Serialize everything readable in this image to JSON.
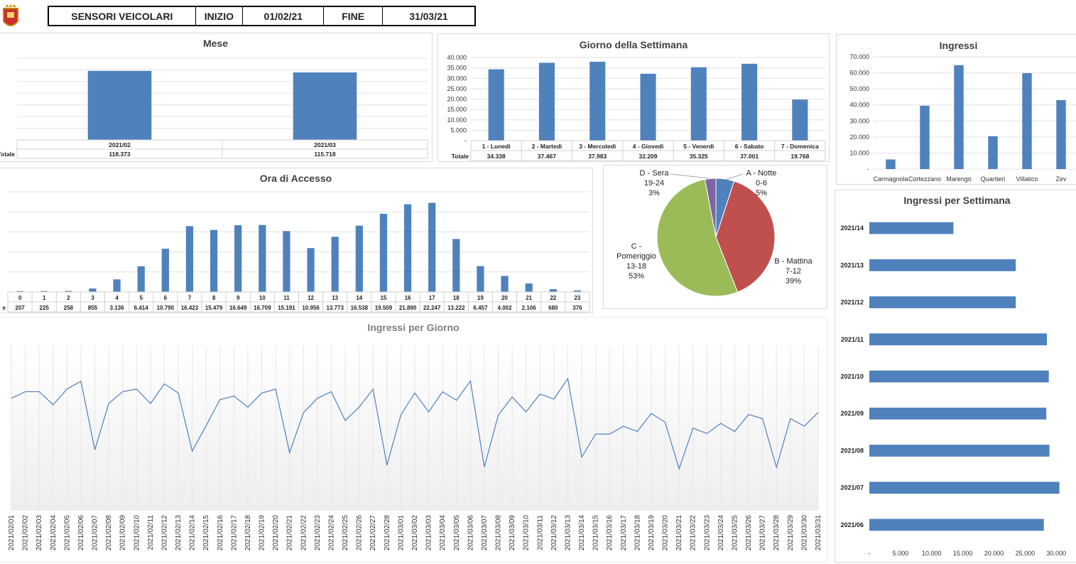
{
  "header": {
    "title": "SENSORI VEICOLARI",
    "start_label": "INIZIO",
    "start_value": "01/02/21",
    "end_label": "FINE",
    "end_value": "31/03/21"
  },
  "colors": {
    "bar": "#4f81bd",
    "grid": "#e3e3e3",
    "text": "#404040",
    "pie_a": "#4f81bd",
    "pie_b": "#c0504d",
    "pie_c": "#9bbb59",
    "pie_d": "#8064a2"
  },
  "chart_data": [
    {
      "id": "mese",
      "type": "bar",
      "title": "Mese",
      "categories": [
        "2021/02",
        "2021/03"
      ],
      "values": [
        118373,
        115718
      ],
      "value_labels": [
        "118.373",
        "115.718"
      ],
      "table_row_label": "Totale",
      "ylim": [
        0,
        140000
      ]
    },
    {
      "id": "giorno",
      "type": "bar",
      "title": "Giorno della Settimana",
      "categories": [
        "1 - Lunedì",
        "2 - Martedì",
        "3 - Mercoledì",
        "4 - Giovedì",
        "5 - Venerdì",
        "6 - Sabato",
        "7 - Domenica"
      ],
      "values": [
        34338,
        37467,
        37983,
        32209,
        35325,
        37001,
        19768
      ],
      "value_labels": [
        "34.338",
        "37.467",
        "37.983",
        "32.209",
        "35.325",
        "37.001",
        "19.768"
      ],
      "table_row_label": "Totale",
      "ylim": [
        0,
        40000
      ],
      "yticks": [
        "-",
        "5.000",
        "10.000",
        "15.000",
        "20.000",
        "25.000",
        "30.000",
        "35.000",
        "40.000"
      ]
    },
    {
      "id": "ingressi",
      "type": "bar",
      "title": "Ingressi",
      "categories": [
        "Carmagnola",
        "Cortezzano",
        "Marengo",
        "Quartieri",
        "Villatico",
        "Zev"
      ],
      "values": [
        6000,
        39500,
        64800,
        20500,
        59800,
        43000
      ],
      "ylim": [
        0,
        70000
      ],
      "yticks": [
        "-",
        "10.000",
        "20.000",
        "30.000",
        "40.000",
        "50.000",
        "60.000",
        "70.000"
      ]
    },
    {
      "id": "ora",
      "type": "bar",
      "title": "Ora di Accesso",
      "categories": [
        "0",
        "1",
        "2",
        "3",
        "4",
        "5",
        "6",
        "7",
        "8",
        "9",
        "10",
        "11",
        "12",
        "13",
        "14",
        "15",
        "16",
        "17",
        "18",
        "19",
        "20",
        "21",
        "22",
        "23"
      ],
      "values": [
        207,
        225,
        258,
        855,
        3136,
        6414,
        10790,
        16423,
        15479,
        16649,
        16709,
        15191,
        10956,
        13773,
        16538,
        19509,
        21890,
        22247,
        13222,
        6457,
        4002,
        2106,
        680,
        376
      ],
      "value_labels": [
        "207",
        "225",
        "258",
        "855",
        "3.136",
        "6.414",
        "10.790",
        "16.423",
        "15.479",
        "16.649",
        "16.709",
        "15.191",
        "10.956",
        "13.773",
        "16.538",
        "19.509",
        "21.890",
        "22.247",
        "13.222",
        "6.457",
        "4.002",
        "2.106",
        "680",
        "376"
      ],
      "table_row_label": "e",
      "ylim": [
        0,
        25000
      ]
    },
    {
      "id": "fascia",
      "type": "pie",
      "slices": [
        {
          "name": "A - Notte",
          "range": "0-6",
          "pct": "5%",
          "value": 5
        },
        {
          "name": "B - Mattina",
          "range": "7-12",
          "pct": "39%",
          "value": 39
        },
        {
          "name": "C - Pomeriggio",
          "range": "13-18",
          "pct": "53%",
          "value": 53
        },
        {
          "name": "D - Sera",
          "range": "19-24",
          "pct": "3%",
          "value": 3
        }
      ]
    },
    {
      "id": "settimana",
      "type": "bar",
      "orientation": "horizontal",
      "title": "Ingressi per Settimana",
      "categories": [
        "2021/14",
        "2021/13",
        "2021/12",
        "2021/11",
        "2021/10",
        "2021/09",
        "2021/08",
        "2021/07",
        "2021/06"
      ],
      "values": [
        13500,
        23500,
        23500,
        28500,
        28800,
        28400,
        28900,
        30500,
        28000
      ],
      "xlim": [
        0,
        31000
      ],
      "xticks": [
        "-",
        "5.000",
        "10.000",
        "15.000",
        "20.000",
        "25.000",
        "30.000"
      ]
    },
    {
      "id": "giornaliero",
      "type": "line",
      "title": "Ingressi per Giorno",
      "x": [
        "2021/02/01",
        "2021/02/02",
        "2021/02/03",
        "2021/02/04",
        "2021/02/05",
        "2021/02/06",
        "2021/02/07",
        "2021/02/08",
        "2021/02/09",
        "2021/02/10",
        "2021/02/11",
        "2021/02/12",
        "2021/02/13",
        "2021/02/14",
        "2021/02/15",
        "2021/02/16",
        "2021/02/17",
        "2021/02/18",
        "2021/02/19",
        "2021/02/20",
        "2021/02/21",
        "2021/02/22",
        "2021/02/23",
        "2021/02/24",
        "2021/02/25",
        "2021/02/26",
        "2021/02/27",
        "2021/02/28",
        "2021/03/01",
        "2021/03/02",
        "2021/03/03",
        "2021/03/04",
        "2021/03/05",
        "2021/03/06",
        "2021/03/07",
        "2021/03/08",
        "2021/03/09",
        "2021/03/10",
        "2021/03/11",
        "2021/03/12",
        "2021/03/13",
        "2021/03/14",
        "2021/03/15",
        "2021/03/16",
        "2021/03/17",
        "2021/03/18",
        "2021/03/19",
        "2021/03/20",
        "2021/03/21",
        "2021/03/22",
        "2021/03/23",
        "2021/03/24",
        "2021/03/25",
        "2021/03/26",
        "2021/03/27",
        "2021/03/28",
        "2021/03/29",
        "2021/03/30",
        "2021/03/31"
      ],
      "y": [
        4300,
        4550,
        4550,
        4050,
        4650,
        4950,
        2330,
        4100,
        4550,
        4650,
        4100,
        4850,
        4500,
        2280,
        3250,
        4250,
        4380,
        3960,
        4500,
        4650,
        2220,
        3750,
        4300,
        4550,
        3450,
        3960,
        4650,
        1740,
        3660,
        4500,
        3780,
        4550,
        4220,
        4960,
        1670,
        3650,
        4350,
        3780,
        4460,
        4270,
        5050,
        2050,
        2930,
        2930,
        3230,
        3030,
        3720,
        3380,
        1600,
        3160,
        2950,
        3340,
        3030,
        3680,
        3520,
        1660,
        3520,
        3230,
        3760
      ],
      "ylim": [
        0,
        6300
      ]
    }
  ]
}
